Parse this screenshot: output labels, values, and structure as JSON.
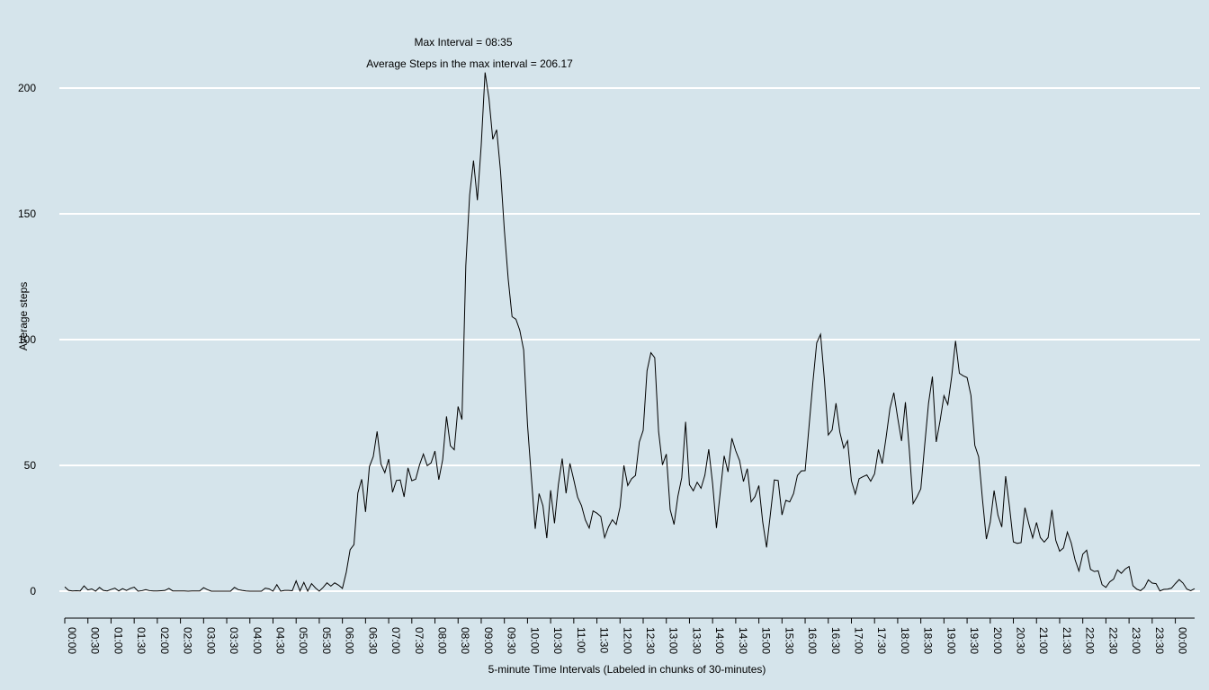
{
  "chart_data": {
    "type": "line",
    "title_lines": [
      "Max Interval = 08:35",
      "Average Steps in the max interval = 206.17"
    ],
    "xlabel": "5-minute Time Intervals (Labeled in chunks of 30-minutes)",
    "ylabel": "Average steps",
    "ylim": [
      -10,
      210
    ],
    "yticks": [
      0,
      50,
      100,
      150,
      200
    ],
    "grid": "horizontal",
    "x_tick_labels": [
      "00:00",
      "00:30",
      "01:00",
      "01:30",
      "02:00",
      "02:30",
      "03:00",
      "03:30",
      "04:00",
      "04:30",
      "05:00",
      "05:30",
      "06:00",
      "06:30",
      "07:00",
      "07:30",
      "08:00",
      "08:30",
      "09:00",
      "09:30",
      "10:00",
      "10:30",
      "11:00",
      "11:30",
      "12:00",
      "12:30",
      "13:00",
      "13:30",
      "14:00",
      "14:30",
      "15:00",
      "15:30",
      "16:00",
      "16:30",
      "17:00",
      "17:30",
      "18:00",
      "18:30",
      "19:00",
      "19:30",
      "20:00",
      "20:30",
      "21:00",
      "21:30",
      "22:00",
      "22:30",
      "23:00",
      "23:30",
      "00:00"
    ],
    "series": [
      {
        "values": [
          1.7,
          0.3,
          0.1,
          0.2,
          0.1,
          2.1,
          0.5,
          0.9,
          0.0,
          1.5,
          0.3,
          0.1,
          0.7,
          1.2,
          0.1,
          1.0,
          0.3,
          1.1,
          1.6,
          0.0,
          0.2,
          0.6,
          0.2,
          0.1,
          0.1,
          0.2,
          0.3,
          1.1,
          0.1,
          0.1,
          0.1,
          0.1,
          0.0,
          0.1,
          0.1,
          0.1,
          1.4,
          0.6,
          0.0,
          0.0,
          0.0,
          0.0,
          0.0,
          0.0,
          1.5,
          0.6,
          0.3,
          0.1,
          0.0,
          0.0,
          0.0,
          0.0,
          1.2,
          0.9,
          0.0,
          2.6,
          0.0,
          0.3,
          0.3,
          0.2,
          4.1,
          0.1,
          3.5,
          0.0,
          3.0,
          1.3,
          0.0,
          1.5,
          3.3,
          2.0,
          3.3,
          2.4,
          1.1,
          7.5,
          16.5,
          18.5,
          39.0,
          44.5,
          31.5,
          49.5,
          53.5,
          63.5,
          50.5,
          47.1,
          52.5,
          39.3,
          44.0,
          44.2,
          37.5,
          49.0,
          43.9,
          44.5,
          50.2,
          54.5,
          49.9,
          51.0,
          55.7,
          44.3,
          52.3,
          69.5,
          57.8,
          56.2,
          73.4,
          68.2,
          129.4,
          157.5,
          171.2,
          155.4,
          177.3,
          206.2,
          195.9,
          179.6,
          183.4,
          167.0,
          143.5,
          124.0,
          109.1,
          108.1,
          103.7,
          95.9,
          66.2,
          45.2,
          24.8,
          38.8,
          34.0,
          21.1,
          40.1,
          27.0,
          42.3,
          52.7,
          38.9,
          50.8,
          44.3,
          37.4,
          34.0,
          28.3,
          25.1,
          31.9,
          31.0,
          29.7,
          21.3,
          25.5,
          28.4,
          26.5,
          33.4,
          50.0,
          42.0,
          44.7,
          46.0,
          59.3,
          63.9,
          87.6,
          94.8,
          92.8,
          63.4,
          50.2,
          54.5,
          32.4,
          26.5,
          37.7,
          45.1,
          67.3,
          42.3,
          39.9,
          43.3,
          40.9,
          46.1,
          56.4,
          42.8,
          25.1,
          39.5,
          53.8,
          47.4,
          60.8,
          55.8,
          51.9,
          43.6,
          48.7,
          35.5,
          37.6,
          42.0,
          27.5,
          17.4,
          30.8,
          44.2,
          44.0,
          30.3,
          36.1,
          35.5,
          38.8,
          46.0,
          47.8,
          47.9,
          65.3,
          82.9,
          98.7,
          102.1,
          84.0,
          62.1,
          64.1,
          74.7,
          63.2,
          56.9,
          59.8,
          43.9,
          38.6,
          44.7,
          45.5,
          46.2,
          43.7,
          46.6,
          56.3,
          50.7,
          61.2,
          72.7,
          78.9,
          68.9,
          59.7,
          75.1,
          56.5,
          34.8,
          37.5,
          40.7,
          58.0,
          74.7,
          85.3,
          59.3,
          67.8,
          77.7,
          74.2,
          85.3,
          99.5,
          86.6,
          85.6,
          84.9,
          77.8,
          58.0,
          53.4,
          36.3,
          20.7,
          27.4,
          40.0,
          30.2,
          25.5,
          45.7,
          33.5,
          19.6,
          19.0,
          19.3,
          33.2,
          26.8,
          21.2,
          27.3,
          21.3,
          19.5,
          21.3,
          32.3,
          20.2,
          15.9,
          17.2,
          23.5,
          19.2,
          12.5,
          8.0,
          14.7,
          16.3,
          8.7,
          7.8,
          8.1,
          2.6,
          1.5,
          3.7,
          4.8,
          8.5,
          7.1,
          8.8,
          9.8,
          2.2,
          0.8,
          0.2,
          1.5,
          4.5,
          3.2,
          3.0,
          0.1,
          0.7,
          0.8,
          1.2,
          3.0,
          4.6,
          3.2,
          0.8,
          0.2,
          1.0
        ]
      }
    ]
  }
}
